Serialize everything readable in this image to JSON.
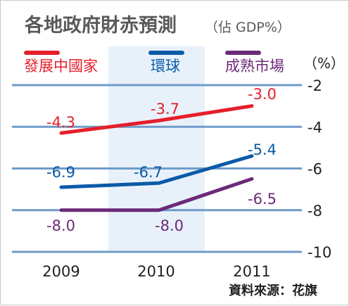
{
  "chart_data": {
    "type": "line",
    "title": "各地政府財赤預測",
    "subtitle": "（佔 GDP%）",
    "ylabel": "（%）",
    "source": "資料來源：花旗",
    "categories": [
      "2009",
      "2010",
      "2011"
    ],
    "ylim": [
      -10,
      -2
    ],
    "yticks": [
      -2,
      -4,
      -6,
      -8,
      -10
    ],
    "y_tick_labels": [
      "-2",
      "-4",
      "-6",
      "-8",
      "-10"
    ],
    "grid": true,
    "legend_position": "top",
    "highlighted_category": "2010",
    "series": [
      {
        "name": "發展中國家",
        "color": "#e51f2b",
        "values": [
          -4.3,
          -3.7,
          -3.0
        ],
        "labels": [
          "-4.3",
          "-3.7",
          "-3.0"
        ]
      },
      {
        "name": "環球",
        "color": "#0b5aa8",
        "values": [
          -6.9,
          -6.7,
          -5.4
        ],
        "labels": [
          "-6.9",
          "-6.7",
          "-5.4"
        ]
      },
      {
        "name": "成熟市場",
        "color": "#6c2a78",
        "values": [
          -8.0,
          -8.0,
          -6.5
        ],
        "labels": [
          "-8.0",
          "-8.0",
          "-6.5"
        ]
      }
    ]
  },
  "colors": {
    "title": "#595959",
    "grid": "#6f9bc9",
    "highlight_band": "#e8f1fa",
    "text": "#231f20"
  }
}
